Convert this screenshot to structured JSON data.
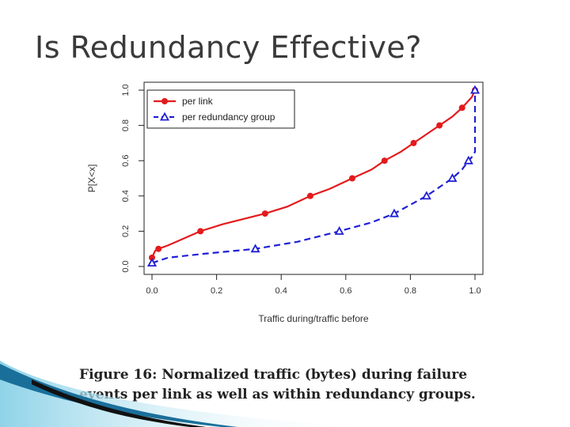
{
  "slide": {
    "title": "Is Redundancy Effective?",
    "caption": "Figure 16: Normalized traffic (bytes) during failure events per link as well as within redundancy groups."
  },
  "colors": {
    "per_link": "#e41a1c",
    "per_group": "#1f1fd6",
    "axis": "#222222",
    "swoosh_light": "#8fd3e8",
    "swoosh_dark": "#1a6f9a"
  },
  "chart_data": {
    "type": "line",
    "title": "",
    "xlabel": "Traffic during/traffic before",
    "ylabel": "P[X<x]",
    "xlim": [
      0,
      1
    ],
    "ylim": [
      0,
      1
    ],
    "xticks": [
      "0.0",
      "0.2",
      "0.4",
      "0.6",
      "0.8",
      "1.0"
    ],
    "yticks": [
      "0.0",
      "0.2",
      "0.4",
      "0.6",
      "0.8",
      "1.0"
    ],
    "legend_position": "top-left",
    "series": [
      {
        "name": "per link",
        "style": "solid",
        "marker": "circle",
        "line": [
          [
            0,
            0.05
          ],
          [
            0.01,
            0.09
          ],
          [
            0.02,
            0.1
          ],
          [
            0.05,
            0.12
          ],
          [
            0.15,
            0.2
          ],
          [
            0.22,
            0.24
          ],
          [
            0.35,
            0.3
          ],
          [
            0.42,
            0.34
          ],
          [
            0.49,
            0.4
          ],
          [
            0.55,
            0.44
          ],
          [
            0.62,
            0.5
          ],
          [
            0.68,
            0.55
          ],
          [
            0.72,
            0.6
          ],
          [
            0.77,
            0.65
          ],
          [
            0.81,
            0.7
          ],
          [
            0.85,
            0.75
          ],
          [
            0.89,
            0.8
          ],
          [
            0.93,
            0.85
          ],
          [
            0.96,
            0.9
          ],
          [
            0.99,
            0.96
          ],
          [
            1.0,
            1.0
          ]
        ],
        "markers": [
          [
            0,
            0.05
          ],
          [
            0.02,
            0.1
          ],
          [
            0.15,
            0.2
          ],
          [
            0.35,
            0.3
          ],
          [
            0.49,
            0.4
          ],
          [
            0.62,
            0.5
          ],
          [
            0.72,
            0.6
          ],
          [
            0.81,
            0.7
          ],
          [
            0.89,
            0.8
          ],
          [
            0.96,
            0.9
          ],
          [
            1.0,
            1.0
          ]
        ]
      },
      {
        "name": "per redundancy group",
        "style": "dashed",
        "marker": "triangle",
        "line": [
          [
            0,
            0.02
          ],
          [
            0.05,
            0.05
          ],
          [
            0.15,
            0.07
          ],
          [
            0.32,
            0.1
          ],
          [
            0.45,
            0.14
          ],
          [
            0.58,
            0.2
          ],
          [
            0.68,
            0.25
          ],
          [
            0.75,
            0.3
          ],
          [
            0.8,
            0.35
          ],
          [
            0.85,
            0.4
          ],
          [
            0.89,
            0.45
          ],
          [
            0.93,
            0.5
          ],
          [
            0.96,
            0.55
          ],
          [
            0.98,
            0.6
          ],
          [
            0.99,
            0.62
          ],
          [
            1.0,
            0.65
          ],
          [
            1.0,
            1.0
          ]
        ],
        "markers": [
          [
            0,
            0.02
          ],
          [
            0.32,
            0.1
          ],
          [
            0.58,
            0.2
          ],
          [
            0.75,
            0.3
          ],
          [
            0.85,
            0.4
          ],
          [
            0.93,
            0.5
          ],
          [
            0.98,
            0.6
          ],
          [
            1.0,
            1.0
          ]
        ]
      }
    ]
  }
}
